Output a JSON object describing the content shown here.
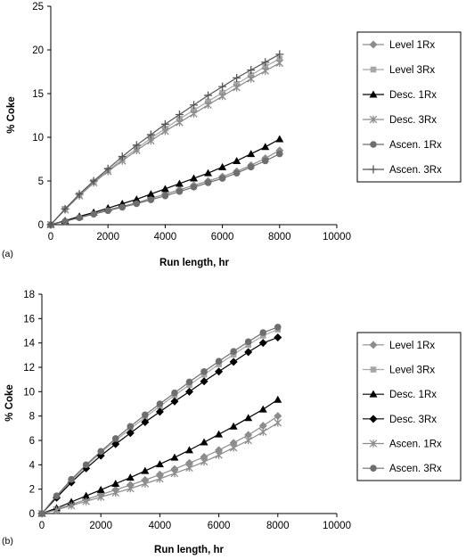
{
  "chart_data": [
    {
      "type": "line",
      "panel_label": "(a)",
      "xlabel": "Run length, hr",
      "ylabel": "% Coke",
      "xlim": [
        0,
        10000
      ],
      "ylim": [
        0,
        25
      ],
      "xticks": [
        0,
        2000,
        4000,
        6000,
        8000,
        10000
      ],
      "yticks": [
        0,
        5,
        10,
        15,
        20,
        25
      ],
      "x": [
        0,
        500,
        1000,
        1500,
        2000,
        2500,
        3000,
        3500,
        4000,
        4500,
        5000,
        5500,
        6000,
        6500,
        7000,
        7500,
        8000
      ],
      "legend_position": "right",
      "grid": false,
      "series": [
        {
          "name": "Level 1Rx",
          "marker": "diamond",
          "color": "#8c8c8c",
          "values": [
            0,
            0.4,
            0.85,
            1.3,
            1.7,
            2.1,
            2.5,
            3.0,
            3.5,
            4.0,
            4.5,
            5.0,
            5.5,
            6.1,
            6.8,
            7.6,
            8.5
          ]
        },
        {
          "name": "Level 3Rx",
          "marker": "square",
          "color": "#a6a6a6",
          "values": [
            0,
            1.8,
            3.4,
            4.9,
            6.2,
            7.5,
            8.7,
            9.9,
            11.0,
            12.1,
            13.1,
            14.1,
            15.1,
            16.1,
            17.1,
            18.1,
            19.0
          ]
        },
        {
          "name": "Desc. 1Rx",
          "marker": "triangle",
          "color": "#000000",
          "values": [
            0,
            0.45,
            0.95,
            1.4,
            1.9,
            2.4,
            2.9,
            3.5,
            4.1,
            4.7,
            5.3,
            5.9,
            6.6,
            7.3,
            8.1,
            8.9,
            9.8
          ]
        },
        {
          "name": "Desc. 3Rx",
          "marker": "star",
          "color": "#8c8c8c",
          "values": [
            0,
            1.7,
            3.3,
            4.8,
            6.1,
            7.3,
            8.5,
            9.6,
            10.7,
            11.7,
            12.7,
            13.7,
            14.7,
            15.7,
            16.7,
            17.6,
            18.5
          ]
        },
        {
          "name": "Ascen. 1Rx",
          "marker": "circle",
          "color": "#6e6e6e",
          "values": [
            0,
            0.38,
            0.8,
            1.2,
            1.6,
            2.0,
            2.4,
            2.85,
            3.3,
            3.8,
            4.3,
            4.8,
            5.3,
            5.9,
            6.6,
            7.3,
            8.1
          ]
        },
        {
          "name": "Ascen. 3Rx",
          "marker": "plus",
          "color": "#555555",
          "values": [
            0,
            1.8,
            3.5,
            5.0,
            6.4,
            7.8,
            9.1,
            10.3,
            11.5,
            12.6,
            13.7,
            14.8,
            15.8,
            16.8,
            17.7,
            18.6,
            19.5
          ]
        }
      ]
    },
    {
      "type": "line",
      "panel_label": "(b)",
      "xlabel": "Run length, hr",
      "ylabel": "% Coke",
      "xlim": [
        0,
        10000
      ],
      "ylim": [
        0,
        18
      ],
      "xticks": [
        0,
        2000,
        4000,
        6000,
        8000,
        10000
      ],
      "yticks": [
        0,
        2,
        4,
        6,
        8,
        10,
        12,
        14,
        16,
        18
      ],
      "x": [
        0,
        500,
        1000,
        1500,
        2000,
        2500,
        3000,
        3500,
        4000,
        4500,
        5000,
        5500,
        6000,
        6500,
        7000,
        7500,
        8000
      ],
      "legend_position": "right",
      "grid": false,
      "series": [
        {
          "name": "Level 1Rx",
          "marker": "diamond",
          "color": "#8c8c8c",
          "values": [
            0,
            0.35,
            0.75,
            1.15,
            1.55,
            1.95,
            2.35,
            2.75,
            3.2,
            3.65,
            4.15,
            4.65,
            5.2,
            5.8,
            6.45,
            7.2,
            8.0
          ]
        },
        {
          "name": "Level 3Rx",
          "marker": "square",
          "color": "#a6a6a6",
          "values": [
            0,
            1.4,
            2.7,
            3.9,
            5.0,
            6.0,
            6.95,
            7.9,
            8.8,
            9.7,
            10.55,
            11.4,
            12.25,
            13.05,
            13.85,
            14.6,
            15.1
          ]
        },
        {
          "name": "Desc. 1Rx",
          "marker": "triangle",
          "color": "#000000",
          "values": [
            0,
            0.45,
            0.95,
            1.45,
            1.95,
            2.45,
            2.95,
            3.5,
            4.05,
            4.6,
            5.2,
            5.85,
            6.5,
            7.15,
            7.85,
            8.55,
            9.35
          ]
        },
        {
          "name": "Desc. 3Rx",
          "marker": "diamond",
          "color": "#000000",
          "values": [
            0,
            1.3,
            2.55,
            3.7,
            4.75,
            5.7,
            6.6,
            7.5,
            8.35,
            9.2,
            10.0,
            10.85,
            11.65,
            12.45,
            13.25,
            14.0,
            14.45
          ]
        },
        {
          "name": "Ascen. 1Rx",
          "marker": "star",
          "color": "#8c8c8c",
          "values": [
            0,
            0.3,
            0.65,
            1.0,
            1.35,
            1.7,
            2.05,
            2.45,
            2.85,
            3.3,
            3.75,
            4.25,
            4.8,
            5.4,
            6.0,
            6.7,
            7.45
          ]
        },
        {
          "name": "Ascen. 3Rx",
          "marker": "circle",
          "color": "#6e6e6e",
          "values": [
            0,
            1.45,
            2.8,
            4.0,
            5.1,
            6.15,
            7.15,
            8.1,
            9.0,
            9.9,
            10.8,
            11.65,
            12.5,
            13.3,
            14.1,
            14.85,
            15.3
          ]
        }
      ]
    }
  ]
}
